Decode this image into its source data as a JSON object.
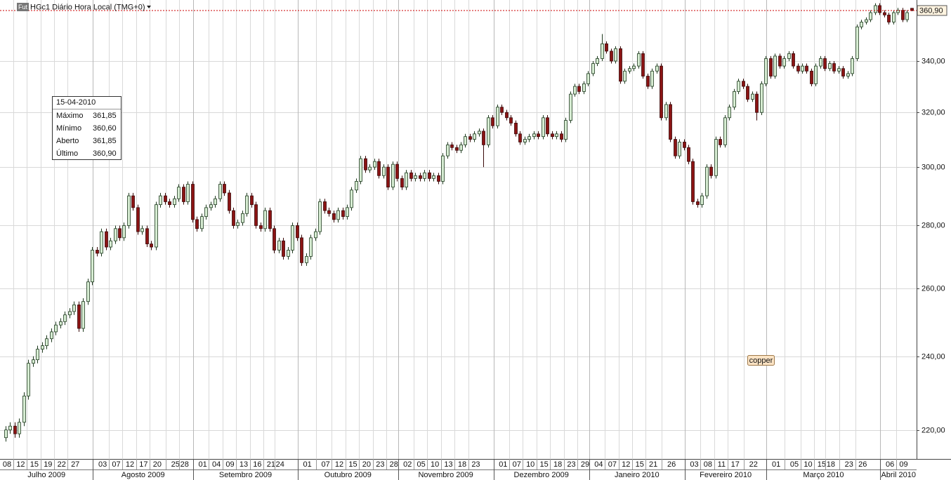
{
  "chart_data": {
    "type": "candlestick",
    "badge": "Fut",
    "title": "HGc1 Diário Hora Local (TMG+0)",
    "log_scale": true,
    "grid": true,
    "ylim": [
      212.6,
      365.4
    ],
    "yticks": [
      {
        "value": 220,
        "label": "220,00"
      },
      {
        "value": 240,
        "label": "240,00"
      },
      {
        "value": 260,
        "label": "260,00"
      },
      {
        "value": 280,
        "label": "280,00"
      },
      {
        "value": 300,
        "label": "300,00"
      },
      {
        "value": 320,
        "label": "320,00"
      },
      {
        "value": 340,
        "label": "340,00"
      }
    ],
    "up_color": "#d6ecd2",
    "down_color": "#8b1414",
    "last_color": "#cc0000",
    "last_label": "360,90",
    "annotation": "copper",
    "info_box": {
      "date": "15-04-2010",
      "rows": [
        [
          "Máximo",
          "361,85"
        ],
        [
          "Mínimo",
          "360,60"
        ],
        [
          "Aberto",
          "361,85"
        ],
        [
          "Último",
          "360,90"
        ]
      ]
    },
    "months": [
      "Julho 2009",
      "Agosto 2009",
      "Setembro 2009",
      "Outubro 2009",
      "Novembro 2009",
      "Dezembro 2009",
      "Janeiro 2010",
      "Fevereiro 2010",
      "Março 2010",
      "Abril 2010"
    ],
    "categories": [
      "08",
      null,
      null,
      "12",
      null,
      null,
      "15",
      null,
      null,
      "19",
      null,
      null,
      "22",
      null,
      null,
      "27",
      null,
      null,
      null,
      null,
      null,
      "03",
      null,
      null,
      "07",
      null,
      null,
      "12",
      null,
      null,
      "17",
      null,
      null,
      "20",
      null,
      null,
      null,
      "25",
      null,
      "28",
      null,
      null,
      null,
      "01",
      null,
      null,
      "04",
      null,
      null,
      "09",
      null,
      null,
      "13",
      null,
      null,
      "16",
      null,
      null,
      "21",
      null,
      "24",
      null,
      null,
      null,
      null,
      null,
      "01",
      null,
      null,
      null,
      "07",
      null,
      null,
      "12",
      null,
      null,
      "15",
      null,
      null,
      "20",
      null,
      null,
      "23",
      null,
      null,
      "28",
      null,
      null,
      "02",
      null,
      null,
      "05",
      null,
      null,
      "10",
      null,
      null,
      "13",
      null,
      null,
      "18",
      null,
      null,
      "23",
      null,
      null,
      null,
      null,
      null,
      "01",
      null,
      null,
      "07",
      null,
      null,
      "10",
      null,
      null,
      "15",
      null,
      null,
      "18",
      null,
      null,
      "23",
      null,
      null,
      "29",
      null,
      null,
      "04",
      null,
      null,
      "07",
      null,
      null,
      "12",
      null,
      null,
      "15",
      null,
      null,
      "21",
      null,
      null,
      null,
      "26",
      null,
      null,
      null,
      null,
      "03",
      null,
      null,
      "08",
      null,
      null,
      "11",
      null,
      null,
      "17",
      null,
      null,
      null,
      "22",
      null,
      null,
      null,
      null,
      "01",
      null,
      null,
      null,
      "05",
      null,
      null,
      "10",
      null,
      null,
      "15",
      null,
      "18",
      null,
      null,
      null,
      "23",
      null,
      null,
      "26",
      null,
      null,
      null,
      null,
      null,
      "06",
      null,
      null,
      "09",
      null,
      null
    ],
    "open": [
      218,
      220,
      221,
      219,
      222,
      229,
      238,
      239,
      242,
      243,
      245,
      247,
      249,
      250,
      252,
      253,
      255,
      248,
      256,
      262,
      272,
      271,
      278,
      273,
      275,
      279,
      276,
      280,
      290,
      286,
      278,
      279,
      274,
      273,
      287,
      290,
      288,
      287,
      289,
      293,
      288,
      294,
      282,
      279,
      283,
      286,
      287,
      289,
      294,
      291,
      285,
      280,
      281,
      284,
      290,
      287,
      280,
      279,
      285,
      279,
      272,
      275,
      270,
      272,
      280,
      276,
      268,
      270,
      276,
      278,
      288,
      285,
      284,
      282,
      285,
      283,
      286,
      292,
      295,
      303,
      299,
      300,
      302,
      297,
      300,
      293,
      301,
      296,
      293,
      298,
      296,
      297,
      296,
      298,
      296,
      297,
      295,
      304,
      308,
      307,
      306,
      308,
      311,
      310,
      312,
      313,
      308,
      318,
      315,
      322,
      320,
      318,
      316,
      312,
      309,
      310,
      311,
      312,
      311,
      318,
      312,
      311,
      312,
      310,
      317,
      327,
      330,
      328,
      331,
      335,
      339,
      341,
      347,
      344,
      340,
      345,
      332,
      336,
      337,
      338,
      343,
      334,
      330,
      336,
      338,
      318,
      323,
      310,
      304,
      309,
      307,
      302,
      288,
      287,
      290,
      300,
      297,
      310,
      308,
      318,
      322,
      328,
      332,
      330,
      325,
      327,
      320,
      331,
      341,
      334,
      342,
      338,
      341,
      343,
      338,
      336,
      338,
      336,
      331,
      338,
      341,
      337,
      339,
      336,
      337,
      334,
      335,
      341,
      354,
      356,
      357,
      360,
      363,
      360,
      359,
      356,
      360,
      361,
      357,
      361.85
    ],
    "high": [
      221,
      222,
      222,
      223,
      230,
      239,
      240,
      243,
      244,
      246,
      248,
      250,
      251,
      253,
      254,
      256,
      256,
      257,
      263,
      273,
      273,
      279,
      279,
      276,
      280,
      280,
      281,
      291,
      291,
      287,
      280,
      280,
      275,
      288,
      291,
      291,
      289,
      290,
      294,
      294,
      295,
      295,
      283,
      284,
      287,
      288,
      290,
      295,
      295,
      292,
      286,
      282,
      285,
      291,
      291,
      288,
      281,
      286,
      286,
      280,
      276,
      276,
      273,
      281,
      281,
      277,
      271,
      277,
      279,
      289,
      289,
      286,
      285,
      286,
      286,
      287,
      293,
      296,
      304,
      304,
      301,
      303,
      303,
      301,
      301,
      302,
      302,
      297,
      299,
      299,
      298,
      298,
      299,
      299,
      298,
      298,
      305,
      309,
      309,
      308,
      309,
      312,
      312,
      313,
      314,
      314,
      319,
      319,
      323,
      323,
      321,
      319,
      317,
      313,
      311,
      312,
      313,
      313,
      319,
      319,
      313,
      313,
      313,
      318,
      328,
      331,
      331,
      332,
      336,
      340,
      342,
      351,
      348,
      345,
      346,
      346,
      337,
      338,
      339,
      344,
      344,
      335,
      337,
      339,
      339,
      324,
      324,
      311,
      310,
      310,
      308,
      303,
      289,
      291,
      301,
      301,
      311,
      311,
      319,
      323,
      329,
      333,
      333,
      331,
      328,
      328,
      332,
      342,
      342,
      343,
      343,
      342,
      344,
      344,
      339,
      339,
      339,
      337,
      339,
      342,
      342,
      340,
      340,
      338,
      338,
      336,
      342,
      355,
      357,
      358,
      361,
      364,
      364,
      361,
      360,
      361,
      362,
      362,
      361,
      361.85
    ],
    "low": [
      217,
      219,
      218,
      218,
      221,
      228,
      237,
      238,
      241,
      242,
      244,
      246,
      248,
      249,
      251,
      252,
      247,
      247,
      255,
      261,
      270,
      270,
      272,
      272,
      274,
      275,
      275,
      279,
      285,
      277,
      277,
      273,
      272,
      272,
      286,
      287,
      286,
      286,
      288,
      287,
      287,
      281,
      278,
      278,
      282,
      285,
      286,
      288,
      290,
      284,
      279,
      279,
      280,
      283,
      286,
      279,
      278,
      278,
      278,
      271,
      271,
      269,
      269,
      271,
      275,
      267,
      267,
      269,
      275,
      277,
      284,
      283,
      281,
      281,
      282,
      282,
      285,
      291,
      294,
      298,
      298,
      299,
      296,
      296,
      292,
      292,
      295,
      292,
      292,
      295,
      295,
      295,
      295,
      295,
      295,
      294,
      294,
      303,
      306,
      305,
      305,
      307,
      309,
      309,
      311,
      300,
      307,
      314,
      314,
      319,
      317,
      315,
      311,
      308,
      308,
      309,
      310,
      310,
      310,
      311,
      310,
      310,
      309,
      309,
      316,
      326,
      327,
      327,
      330,
      334,
      338,
      340,
      343,
      339,
      339,
      331,
      331,
      335,
      336,
      337,
      333,
      329,
      329,
      335,
      317,
      317,
      309,
      303,
      303,
      306,
      301,
      287,
      286,
      286,
      289,
      296,
      296,
      307,
      307,
      317,
      321,
      327,
      329,
      324,
      324,
      317,
      319,
      330,
      333,
      333,
      337,
      337,
      340,
      337,
      335,
      335,
      335,
      330,
      330,
      337,
      336,
      336,
      335,
      335,
      333,
      333,
      334,
      340,
      353,
      355,
      356,
      359,
      359,
      358,
      355,
      355,
      359,
      356,
      356,
      360.6
    ],
    "close": [
      220,
      221,
      219,
      222,
      229,
      238,
      239,
      242,
      243,
      245,
      247,
      249,
      250,
      252,
      253,
      255,
      248,
      256,
      262,
      272,
      271,
      278,
      273,
      275,
      279,
      276,
      280,
      290,
      286,
      278,
      279,
      274,
      273,
      287,
      290,
      288,
      287,
      289,
      293,
      288,
      294,
      282,
      279,
      283,
      286,
      287,
      289,
      294,
      291,
      285,
      280,
      281,
      284,
      290,
      287,
      280,
      279,
      285,
      279,
      272,
      275,
      270,
      272,
      280,
      276,
      268,
      270,
      276,
      278,
      288,
      285,
      284,
      282,
      285,
      283,
      286,
      292,
      295,
      303,
      299,
      300,
      302,
      297,
      300,
      293,
      301,
      296,
      293,
      298,
      296,
      297,
      296,
      298,
      296,
      297,
      295,
      304,
      308,
      307,
      306,
      308,
      311,
      310,
      312,
      313,
      308,
      318,
      315,
      322,
      320,
      318,
      316,
      312,
      309,
      310,
      311,
      312,
      311,
      318,
      312,
      311,
      312,
      310,
      317,
      327,
      330,
      328,
      331,
      335,
      339,
      341,
      347,
      344,
      340,
      345,
      332,
      336,
      337,
      338,
      343,
      334,
      330,
      336,
      338,
      318,
      323,
      310,
      304,
      309,
      307,
      302,
      288,
      287,
      290,
      300,
      297,
      310,
      308,
      318,
      322,
      328,
      332,
      330,
      325,
      327,
      320,
      331,
      341,
      334,
      342,
      338,
      341,
      343,
      338,
      336,
      338,
      336,
      331,
      338,
      341,
      337,
      339,
      336,
      337,
      334,
      335,
      341,
      354,
      356,
      357,
      360,
      363,
      360,
      359,
      356,
      360,
      361,
      357,
      360,
      360.9
    ]
  }
}
